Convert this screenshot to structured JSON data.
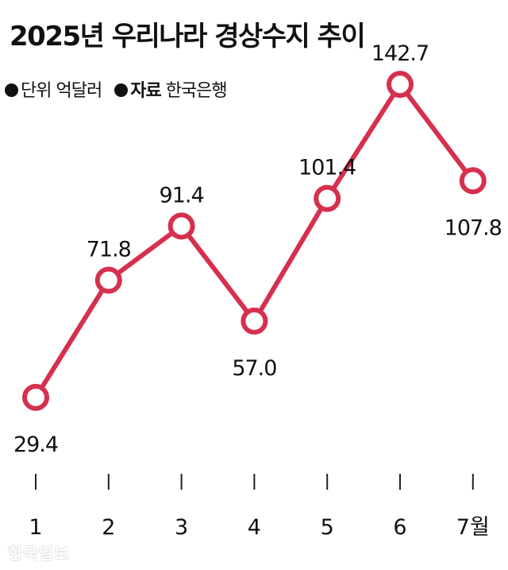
{
  "title": "2025년 우리나라 경상수지 추이",
  "unit_label": "단위 억달러",
  "source_label": "자료",
  "source_value": "한국은행",
  "watermark": "한국일보",
  "colors": {
    "line": "#d6304f",
    "point_fill": "#ffffff",
    "text": "#111111"
  },
  "chart_data": {
    "type": "line",
    "categories": [
      "1",
      "2",
      "3",
      "4",
      "5",
      "6",
      "7월"
    ],
    "values": [
      29.4,
      71.8,
      91.4,
      57.0,
      101.4,
      142.7,
      107.8
    ],
    "labels": [
      "29.4",
      "71.8",
      "91.4",
      "57.0",
      "101.4",
      "142.7",
      "107.8"
    ],
    "label_positions": [
      "below",
      "above",
      "above",
      "below",
      "above",
      "above",
      "below"
    ],
    "title": "2025년 우리나라 경상수지 추이",
    "ylim": [
      0,
      160
    ],
    "grid": false
  }
}
